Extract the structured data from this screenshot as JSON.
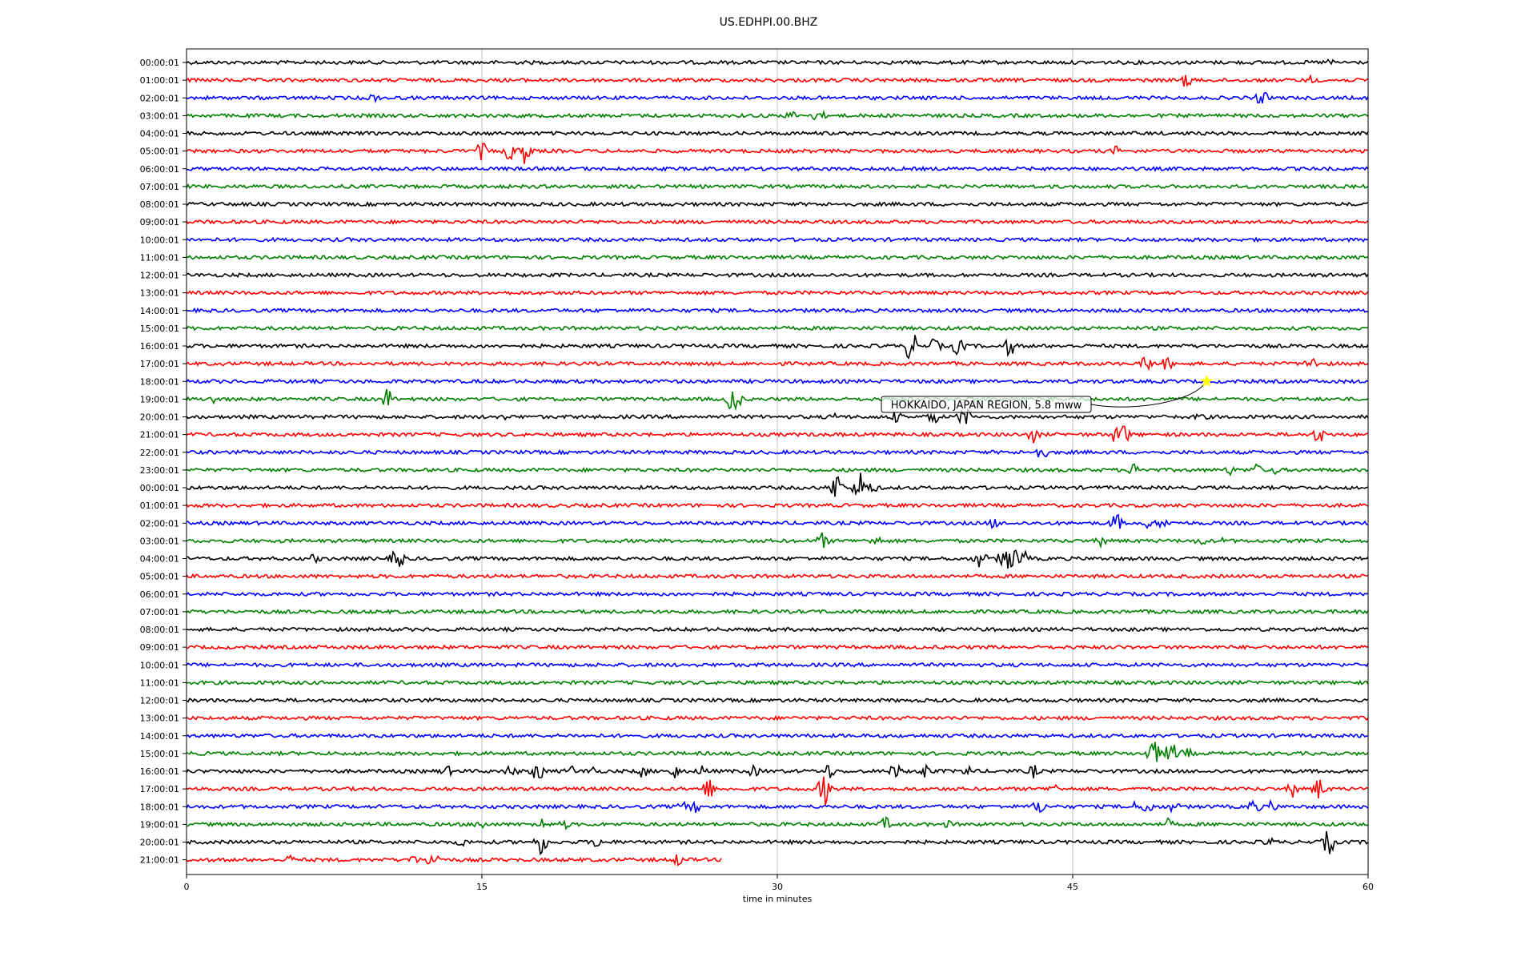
{
  "chart_data": {
    "type": "line",
    "title": "US.EDHPI.00.BHZ",
    "xlabel": "time in minutes",
    "ylabel": "",
    "xlim": [
      0,
      60
    ],
    "xticks": [
      "0",
      "15",
      "30",
      "45",
      "60"
    ],
    "grid": "vertical",
    "series_colors": [
      "#000000",
      "#ff0000",
      "#0000ff",
      "#008000"
    ],
    "rows": [
      {
        "label": "00:00:01",
        "end": 60,
        "events": [
          [
            58,
            0.4
          ]
        ]
      },
      {
        "label": "01:00:01",
        "end": 60,
        "events": [
          [
            50.8,
            0.8
          ],
          [
            57.2,
            0.6
          ]
        ]
      },
      {
        "label": "02:00:01",
        "end": 60,
        "events": [
          [
            9.5,
            0.5
          ],
          [
            54.6,
            0.8
          ]
        ]
      },
      {
        "label": "03:00:01",
        "end": 60,
        "events": [
          [
            30.7,
            0.5
          ],
          [
            32.1,
            0.7
          ]
        ]
      },
      {
        "label": "04:00:01",
        "end": 60,
        "events": []
      },
      {
        "label": "05:00:01",
        "end": 60,
        "events": [
          [
            15,
            0.9
          ],
          [
            16.4,
            0.9
          ],
          [
            17.2,
            1.3
          ],
          [
            47.2,
            0.5
          ]
        ]
      },
      {
        "label": "06:00:01",
        "end": 60,
        "events": []
      },
      {
        "label": "07:00:01",
        "end": 60,
        "events": []
      },
      {
        "label": "08:00:01",
        "end": 60,
        "events": []
      },
      {
        "label": "09:00:01",
        "end": 60,
        "events": []
      },
      {
        "label": "10:00:01",
        "end": 60,
        "events": []
      },
      {
        "label": "11:00:01",
        "end": 60,
        "events": []
      },
      {
        "label": "12:00:01",
        "end": 60,
        "events": []
      },
      {
        "label": "13:00:01",
        "end": 60,
        "events": []
      },
      {
        "label": "14:00:01",
        "end": 60,
        "events": []
      },
      {
        "label": "15:00:01",
        "end": 60,
        "events": []
      },
      {
        "label": "16:00:01",
        "end": 60,
        "events": [
          [
            36.8,
            1.6
          ],
          [
            38,
            0.8
          ],
          [
            39.2,
            1.0
          ],
          [
            41.8,
            1.0
          ]
        ]
      },
      {
        "label": "17:00:01",
        "end": 60,
        "events": [
          [
            48.8,
            0.9
          ],
          [
            49.8,
            0.7
          ],
          [
            57.1,
            0.8
          ]
        ]
      },
      {
        "label": "18:00:01",
        "end": 60,
        "events": []
      },
      {
        "label": "19:00:01",
        "end": 60,
        "events": [
          [
            1.5,
            0.6
          ],
          [
            10.2,
            1.1
          ],
          [
            27.8,
            1.7
          ]
        ]
      },
      {
        "label": "20:00:01",
        "end": 60,
        "events": [
          [
            16,
            0.4
          ],
          [
            33,
            0.5
          ],
          [
            36,
            0.6
          ],
          [
            37.9,
            0.8
          ],
          [
            39.5,
            1.1
          ],
          [
            51.5,
            0.5
          ]
        ]
      },
      {
        "label": "21:00:01",
        "end": 60,
        "events": [
          [
            43,
            0.8
          ],
          [
            47.2,
            0.9
          ],
          [
            47.6,
            1.0
          ],
          [
            57.5,
            0.9
          ]
        ]
      },
      {
        "label": "22:00:01",
        "end": 60,
        "events": [
          [
            43.4,
            0.8
          ]
        ]
      },
      {
        "label": "23:00:01",
        "end": 60,
        "events": [
          [
            48.2,
            0.9
          ],
          [
            53,
            0.5
          ],
          [
            54.3,
            0.6
          ],
          [
            55.2,
            0.5
          ]
        ]
      },
      {
        "label": "00:00:01",
        "end": 60,
        "events": [
          [
            33,
            1.5
          ],
          [
            34.2,
            1.6
          ],
          [
            34.8,
            0.6
          ]
        ]
      },
      {
        "label": "01:00:01",
        "end": 60,
        "events": []
      },
      {
        "label": "02:00:01",
        "end": 60,
        "events": [
          [
            41,
            0.6
          ],
          [
            47.2,
            1.0
          ],
          [
            48.9,
            0.6
          ],
          [
            49.6,
            0.6
          ]
        ]
      },
      {
        "label": "03:00:01",
        "end": 60,
        "events": [
          [
            32.3,
            0.8
          ],
          [
            35,
            0.6
          ],
          [
            46.5,
            0.6
          ],
          [
            51.5,
            0.5
          ],
          [
            52.5,
            0.4
          ]
        ]
      },
      {
        "label": "04:00:01",
        "end": 60,
        "events": [
          [
            6.5,
            0.5
          ],
          [
            10.7,
            1.3
          ],
          [
            40.3,
            1.0
          ],
          [
            41.5,
            1.0
          ],
          [
            41.9,
            1.6
          ],
          [
            42.5,
            0.8
          ]
        ]
      },
      {
        "label": "05:00:01",
        "end": 60,
        "events": []
      },
      {
        "label": "06:00:01",
        "end": 60,
        "events": []
      },
      {
        "label": "07:00:01",
        "end": 60,
        "events": []
      },
      {
        "label": "08:00:01",
        "end": 60,
        "events": []
      },
      {
        "label": "09:00:01",
        "end": 60,
        "events": []
      },
      {
        "label": "10:00:01",
        "end": 60,
        "events": []
      },
      {
        "label": "11:00:01",
        "end": 60,
        "events": []
      },
      {
        "label": "12:00:01",
        "end": 60,
        "events": []
      },
      {
        "label": "13:00:01",
        "end": 60,
        "events": []
      },
      {
        "label": "14:00:01",
        "end": 60,
        "events": []
      },
      {
        "label": "15:00:01",
        "end": 60,
        "events": [
          [
            49.1,
            1.4
          ],
          [
            50,
            1.2
          ],
          [
            50.8,
            0.6
          ]
        ]
      },
      {
        "label": "16:00:01",
        "end": 60,
        "events": [
          [
            13.2,
            0.6
          ],
          [
            16.5,
            0.7
          ],
          [
            17.8,
            1.1
          ],
          [
            19.5,
            0.6
          ],
          [
            20.6,
            0.6
          ],
          [
            23.2,
            0.7
          ],
          [
            24.8,
            0.7
          ],
          [
            26.2,
            0.6
          ],
          [
            28.8,
            0.6
          ],
          [
            32.6,
            0.8
          ],
          [
            36,
            0.8
          ],
          [
            37.5,
            0.8
          ],
          [
            39.7,
            0.6
          ],
          [
            43,
            0.7
          ]
        ]
      },
      {
        "label": "17:00:01",
        "end": 60,
        "events": [
          [
            26.5,
            1.1
          ],
          [
            32.4,
            1.6
          ],
          [
            44,
            0.6
          ],
          [
            56.2,
            0.8
          ],
          [
            57.5,
            1.1
          ]
        ]
      },
      {
        "label": "18:00:01",
        "end": 60,
        "events": [
          [
            25.2,
            0.5
          ],
          [
            25.8,
            0.6
          ],
          [
            43.3,
            0.8
          ],
          [
            48,
            0.6
          ],
          [
            48.8,
            0.8
          ],
          [
            50.1,
            0.6
          ],
          [
            54.2,
            0.8
          ],
          [
            55.1,
            0.6
          ]
        ]
      },
      {
        "label": "19:00:01",
        "end": 60,
        "events": [
          [
            14.9,
            0.6
          ],
          [
            18,
            0.7
          ],
          [
            19.2,
            0.5
          ],
          [
            35.5,
            0.7
          ],
          [
            38.7,
            0.4
          ],
          [
            49.8,
            0.6
          ]
        ]
      },
      {
        "label": "20:00:01",
        "end": 60,
        "events": [
          [
            14,
            0.5
          ],
          [
            18,
            1.2
          ],
          [
            20.8,
            0.6
          ],
          [
            55,
            0.5
          ],
          [
            58,
            1.3
          ]
        ]
      },
      {
        "label": "21:00:01",
        "end": 27.2,
        "events": [
          [
            5.3,
            0.5
          ],
          [
            11.5,
            0.5
          ],
          [
            12.5,
            1.0
          ],
          [
            25,
            0.7
          ]
        ]
      }
    ],
    "annotations": [
      {
        "text": "HOKKAIDO, JAPAN REGION, 5.8 mww",
        "row": 18,
        "x": 51.8,
        "marker_color": "#ffff00"
      }
    ]
  }
}
